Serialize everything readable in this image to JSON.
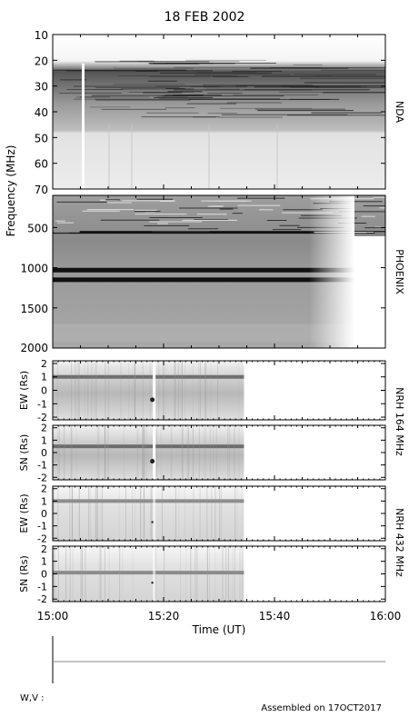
{
  "figure": {
    "title": "18 FEB 2002",
    "ylabel": "Frequency (MHz)",
    "footer_left": "W,V :",
    "footer_right": "Assembled on 17OCT2017"
  },
  "chart_data": [
    {
      "type": "heatmap",
      "instrument": "NDA",
      "ylim": [
        10,
        70
      ],
      "y_ticks": [
        "10",
        "20",
        "30",
        "40",
        "50",
        "60",
        "70"
      ],
      "y_tick_values": [
        10,
        20,
        30,
        40,
        50,
        60,
        70
      ],
      "xlim": [
        0,
        60
      ],
      "blanking_line_time": 5.2
    },
    {
      "type": "heatmap",
      "instrument": "PHOENIX",
      "y_ticks": [
        "500",
        "1000",
        "1500",
        "2000"
      ],
      "y_tick_values": [
        500,
        1000,
        1500,
        2000
      ],
      "ylim": [
        100,
        2000
      ],
      "bright_bands": [
        1030,
        1150,
        560
      ],
      "xlim": [
        0,
        60
      ]
    },
    {
      "type": "heatmap",
      "instrument": "NRH",
      "axis_label": "EW (Rs)",
      "y_ticks": [
        "2",
        "1",
        "0",
        "-1",
        "-2"
      ],
      "y_tick_values": [
        2,
        1,
        0,
        -1,
        -2
      ],
      "ylim": [
        -2.2,
        2.2
      ],
      "data_end_time": 34.5,
      "band_center": 1.0
    },
    {
      "type": "heatmap",
      "instrument": "NRH",
      "axis_label": "SN (Rs)",
      "y_ticks": [
        "2",
        "1",
        "0",
        "-1",
        "-2"
      ],
      "y_tick_values": [
        2,
        1,
        0,
        -1,
        -2
      ],
      "ylim": [
        -2.2,
        2.2
      ],
      "data_end_time": 34.5,
      "band_center": 0.5
    },
    {
      "type": "heatmap",
      "instrument": "NRH",
      "axis_label": "EW (Rs)",
      "y_ticks": [
        "2",
        "1",
        "0",
        "-1",
        "-2"
      ],
      "y_tick_values": [
        2,
        1,
        0,
        -1,
        -2
      ],
      "ylim": [
        -2.2,
        2.2
      ],
      "data_end_time": 34.5,
      "band_center": 1.0
    },
    {
      "type": "heatmap",
      "instrument": "NRH",
      "axis_label": "SN (Rs)",
      "y_ticks": [
        "2",
        "1",
        "0",
        "-1",
        "-2"
      ],
      "y_tick_values": [
        2,
        1,
        0,
        -1,
        -2
      ],
      "ylim": [
        -2.2,
        2.2
      ],
      "data_end_time": 34.5,
      "band_center": 0.1
    }
  ],
  "right_labels": {
    "nda": "NDA",
    "phoenix": "PHOENIX",
    "nrh164": "NRH 164 MHz",
    "nrh432": "NRH 432 MHz"
  },
  "time_axis": {
    "label": "Time (UT)",
    "ticks": [
      "15:00",
      "15:20",
      "15:40",
      "16:00"
    ],
    "tick_minutes": [
      0,
      20,
      40,
      60
    ],
    "minor_minutes": [
      5,
      10,
      15,
      25,
      30,
      35,
      45,
      50,
      55
    ]
  },
  "colors": {
    "frame": "#000000",
    "background": "#ffffff",
    "footer_line": "#888888"
  }
}
